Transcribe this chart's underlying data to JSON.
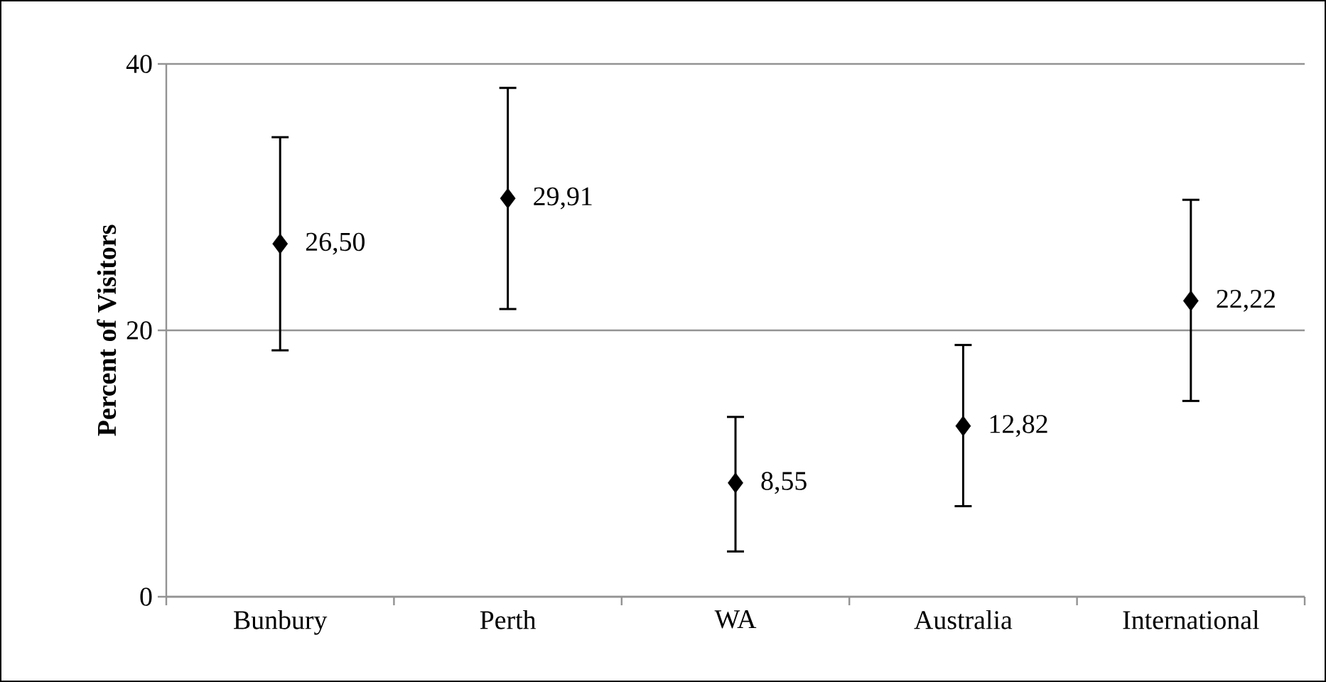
{
  "chart_data": {
    "type": "scatter",
    "ylabel": "Percent of Visitors",
    "categories": [
      "Bunbury",
      "Perth",
      "WA",
      "Australia",
      "International"
    ],
    "values": [
      26.5,
      29.91,
      8.55,
      12.82,
      22.22
    ],
    "errors": [
      [
        18.5,
        34.5
      ],
      [
        21.6,
        38.2
      ],
      [
        3.4,
        13.5
      ],
      [
        6.8,
        18.9
      ],
      [
        14.7,
        29.8
      ]
    ],
    "value_labels": [
      "26,50",
      "29,91",
      "8,55",
      "12,82",
      "22,22"
    ],
    "color": "#000000",
    "marker": "diamond",
    "ylim": [
      0,
      40
    ],
    "yticks": [
      0,
      20,
      40
    ],
    "grid": "y"
  }
}
